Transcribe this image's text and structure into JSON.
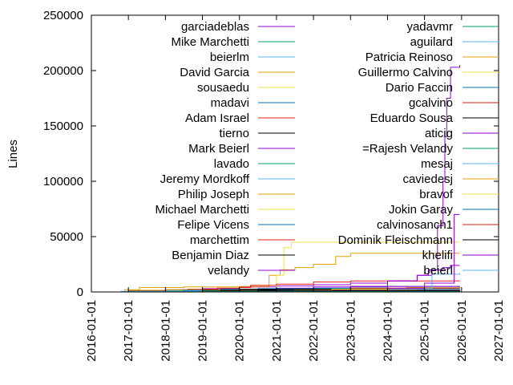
{
  "chart_data": {
    "type": "line",
    "title": "",
    "xlabel": "",
    "ylabel": "Lines",
    "ylim": [
      0,
      250000
    ],
    "xlim": [
      2016.0,
      2027.0
    ],
    "grid": false,
    "legend_position": "top-right",
    "y_ticks": [
      {
        "value": 0,
        "label": "0"
      },
      {
        "value": 50000,
        "label": "50000"
      },
      {
        "value": 100000,
        "label": "100000"
      },
      {
        "value": 150000,
        "label": "150000"
      },
      {
        "value": 200000,
        "label": "200000"
      },
      {
        "value": 250000,
        "label": "250000"
      }
    ],
    "x_ticks": [
      {
        "value": 2016,
        "label": "2016-01-01"
      },
      {
        "value": 2017,
        "label": "2017-01-01"
      },
      {
        "value": 2018,
        "label": "2018-01-01"
      },
      {
        "value": 2019,
        "label": "2019-01-01"
      },
      {
        "value": 2020,
        "label": "2020-01-01"
      },
      {
        "value": 2021,
        "label": "2021-01-01"
      },
      {
        "value": 2022,
        "label": "2022-01-01"
      },
      {
        "value": 2023,
        "label": "2023-01-01"
      },
      {
        "value": 2024,
        "label": "2024-01-01"
      },
      {
        "value": 2025,
        "label": "2025-01-01"
      },
      {
        "value": 2026,
        "label": "2026-01-01"
      },
      {
        "value": 2027,
        "label": "2027-01-01"
      }
    ],
    "series": [
      {
        "name": "garciadeblas",
        "color": "#9400d3",
        "points": [
          [
            2016.3,
            0
          ],
          [
            2017.0,
            1000
          ],
          [
            2018.0,
            2000
          ],
          [
            2019.0,
            3000
          ],
          [
            2020.0,
            4500
          ],
          [
            2021.0,
            5500
          ],
          [
            2022.0,
            6500
          ],
          [
            2023.0,
            8000
          ],
          [
            2024.0,
            10000
          ],
          [
            2024.8,
            15000
          ],
          [
            2025.1,
            20000
          ],
          [
            2025.5,
            22000
          ],
          [
            2025.7,
            24000
          ],
          [
            2025.95,
            24000
          ]
        ]
      },
      {
        "name": "Mike Marchetti",
        "color": "#009e73",
        "points": [
          [
            2016.5,
            0
          ],
          [
            2018.0,
            300
          ],
          [
            2019.5,
            800
          ],
          [
            2022.0,
            1200
          ],
          [
            2025.95,
            1500
          ]
        ]
      },
      {
        "name": "beierlm",
        "color": "#56b4e9",
        "points": [
          [
            2017.5,
            0
          ],
          [
            2019.0,
            1000
          ],
          [
            2021.0,
            1800
          ],
          [
            2023.0,
            2500
          ],
          [
            2025.0,
            3000
          ],
          [
            2025.95,
            3200
          ]
        ]
      },
      {
        "name": "David Garcia",
        "color": "#e69f00",
        "points": [
          [
            2016.2,
            0
          ],
          [
            2016.9,
            2000
          ],
          [
            2017.3,
            4000
          ],
          [
            2018.5,
            4500
          ],
          [
            2020.0,
            5000
          ],
          [
            2020.8,
            15000
          ],
          [
            2021.1,
            20000
          ],
          [
            2021.5,
            22000
          ],
          [
            2022.0,
            25000
          ],
          [
            2022.6,
            32000
          ],
          [
            2023.0,
            35000
          ],
          [
            2025.0,
            35000
          ],
          [
            2025.95,
            35000
          ]
        ]
      },
      {
        "name": "sousaedu",
        "color": "#f0e442",
        "points": [
          [
            2020.5,
            0
          ],
          [
            2021.0,
            15000
          ],
          [
            2021.2,
            40000
          ],
          [
            2021.4,
            45000
          ],
          [
            2022.0,
            45000
          ],
          [
            2023.0,
            45000
          ],
          [
            2025.0,
            45000
          ],
          [
            2025.95,
            45000
          ]
        ]
      },
      {
        "name": "madavi",
        "color": "#0072b2",
        "points": [
          [
            2019.0,
            0
          ],
          [
            2020.0,
            1500
          ],
          [
            2021.0,
            2500
          ],
          [
            2022.0,
            3500
          ],
          [
            2023.0,
            4500
          ],
          [
            2024.0,
            5000
          ],
          [
            2025.95,
            5500
          ]
        ]
      },
      {
        "name": "Adam Israel",
        "color": "#e51e10",
        "points": [
          [
            2018.0,
            0
          ],
          [
            2018.6,
            2500
          ],
          [
            2019.4,
            3500
          ],
          [
            2020.0,
            4000
          ],
          [
            2020.3,
            6000
          ],
          [
            2021.0,
            7000
          ],
          [
            2022.0,
            9000
          ],
          [
            2023.0,
            10000
          ],
          [
            2025.95,
            10000
          ]
        ]
      },
      {
        "name": "tierno",
        "color": "#000000",
        "points": [
          [
            2016.1,
            0
          ],
          [
            2017.0,
            800
          ],
          [
            2019.0,
            1500
          ],
          [
            2021.0,
            2000
          ],
          [
            2023.0,
            2500
          ],
          [
            2025.95,
            3000
          ]
        ]
      },
      {
        "name": "Mark Beierl",
        "color": "#9400d3",
        "points": [
          [
            2019.8,
            0
          ],
          [
            2020.0,
            2000
          ],
          [
            2021.0,
            3500
          ],
          [
            2022.0,
            4500
          ],
          [
            2023.0,
            5000
          ],
          [
            2025.95,
            5500
          ]
        ]
      },
      {
        "name": "lavado",
        "color": "#009e73",
        "points": [
          [
            2017.0,
            0
          ],
          [
            2018.0,
            1500
          ],
          [
            2020.0,
            2500
          ],
          [
            2022.0,
            3000
          ],
          [
            2025.95,
            3500
          ]
        ]
      },
      {
        "name": "Jeremy Mordkoff",
        "color": "#56b4e9",
        "points": [
          [
            2016.3,
            0
          ],
          [
            2016.8,
            500
          ],
          [
            2018.0,
            800
          ],
          [
            2025.95,
            800
          ]
        ]
      },
      {
        "name": "Philip Joseph",
        "color": "#e69f00",
        "points": [
          [
            2016.4,
            0
          ],
          [
            2017.0,
            1500
          ],
          [
            2018.0,
            2000
          ],
          [
            2025.95,
            2000
          ]
        ]
      },
      {
        "name": "Michael Marchetti",
        "color": "#f0e442",
        "points": [
          [
            2018.0,
            0
          ],
          [
            2019.0,
            600
          ],
          [
            2020.0,
            1000
          ],
          [
            2025.95,
            1200
          ]
        ]
      },
      {
        "name": "Felipe Vicens",
        "color": "#0072b2",
        "points": [
          [
            2017.5,
            0
          ],
          [
            2018.5,
            1500
          ],
          [
            2019.5,
            2500
          ],
          [
            2020.5,
            3000
          ],
          [
            2025.95,
            3200
          ]
        ]
      },
      {
        "name": "marchettim",
        "color": "#e51e10",
        "points": [
          [
            2018.5,
            0
          ],
          [
            2019.5,
            700
          ],
          [
            2025.95,
            1000
          ]
        ]
      },
      {
        "name": "Benjamin Diaz",
        "color": "#000000",
        "points": [
          [
            2018.5,
            0
          ],
          [
            2019.5,
            1200
          ],
          [
            2020.5,
            1800
          ],
          [
            2025.95,
            2000
          ]
        ]
      },
      {
        "name": "velandy",
        "color": "#9400d3",
        "points": [
          [
            2019.5,
            0
          ],
          [
            2020.5,
            900
          ],
          [
            2025.95,
            1000
          ]
        ]
      },
      {
        "name": "yadavmr",
        "color": "#009e73",
        "points": [
          [
            2019.0,
            0
          ],
          [
            2020.0,
            500
          ],
          [
            2025.95,
            600
          ]
        ]
      },
      {
        "name": "aguilard",
        "color": "#56b4e9",
        "points": [
          [
            2020.0,
            0
          ],
          [
            2021.0,
            1500
          ],
          [
            2022.0,
            2000
          ],
          [
            2025.95,
            2200
          ]
        ]
      },
      {
        "name": "Patricia Reinoso",
        "color": "#e69f00",
        "points": [
          [
            2022.5,
            0
          ],
          [
            2023.5,
            2500
          ],
          [
            2024.5,
            4000
          ],
          [
            2025.95,
            5000
          ]
        ]
      },
      {
        "name": "Guillermo Calvino",
        "color": "#f0e442",
        "points": [
          [
            2023.0,
            0
          ],
          [
            2024.0,
            2000
          ],
          [
            2025.0,
            4000
          ],
          [
            2025.95,
            6000
          ]
        ]
      },
      {
        "name": "Dario Faccin",
        "color": "#0072b2",
        "points": [
          [
            2023.5,
            0
          ],
          [
            2024.5,
            3500
          ],
          [
            2025.95,
            5000
          ]
        ]
      },
      {
        "name": "gcalvino",
        "color": "#e51e10",
        "points": [
          [
            2021.0,
            0
          ],
          [
            2022.0,
            2000
          ],
          [
            2023.0,
            3500
          ],
          [
            2025.95,
            4500
          ]
        ]
      },
      {
        "name": "Eduardo Sousa",
        "color": "#000000",
        "points": [
          [
            2018.0,
            0
          ],
          [
            2019.0,
            1500
          ],
          [
            2020.0,
            2500
          ],
          [
            2025.95,
            2800
          ]
        ]
      },
      {
        "name": "aticig",
        "color": "#9400d3",
        "points": [
          [
            2021.5,
            0
          ],
          [
            2023.0,
            5000
          ],
          [
            2024.0,
            10000
          ],
          [
            2024.8,
            15000
          ],
          [
            2025.2,
            20000
          ],
          [
            2025.35,
            60000
          ],
          [
            2025.5,
            100000
          ],
          [
            2025.55,
            140000
          ],
          [
            2025.6,
            175000
          ],
          [
            2025.7,
            203000
          ],
          [
            2025.95,
            205000
          ]
        ]
      },
      {
        "name": "=Rajesh Velandy",
        "color": "#009e73",
        "points": [
          [
            2018.0,
            0
          ],
          [
            2019.0,
            400
          ],
          [
            2025.95,
            500
          ]
        ]
      },
      {
        "name": "mesaj",
        "color": "#56b4e9",
        "points": [
          [
            2023.5,
            0
          ],
          [
            2024.5,
            3000
          ],
          [
            2025.2,
            16000
          ],
          [
            2025.95,
            17000
          ]
        ]
      },
      {
        "name": "caviedesj",
        "color": "#e69f00",
        "points": [
          [
            2024.0,
            0
          ],
          [
            2025.0,
            1500
          ],
          [
            2025.95,
            2500
          ]
        ]
      },
      {
        "name": "bravof",
        "color": "#f0e442",
        "points": [
          [
            2020.5,
            0
          ],
          [
            2021.5,
            1500
          ],
          [
            2022.5,
            2500
          ],
          [
            2025.95,
            3000
          ]
        ]
      },
      {
        "name": "Jokin Garay",
        "color": "#0072b2",
        "points": [
          [
            2024.0,
            0
          ],
          [
            2024.8,
            2000
          ],
          [
            2025.95,
            3000
          ]
        ]
      },
      {
        "name": "calvinosanch1",
        "color": "#e51e10",
        "points": [
          [
            2022.0,
            0
          ],
          [
            2023.0,
            1500
          ],
          [
            2025.95,
            2500
          ]
        ]
      },
      {
        "name": "Dominik Fleischmann",
        "color": "#000000",
        "points": [
          [
            2019.5,
            0
          ],
          [
            2020.5,
            1200
          ],
          [
            2025.95,
            1500
          ]
        ]
      },
      {
        "name": "khelifi",
        "color": "#9400d3",
        "points": [
          [
            2022.5,
            0
          ],
          [
            2024.0,
            3000
          ],
          [
            2025.0,
            8000
          ],
          [
            2025.8,
            70000
          ],
          [
            2025.95,
            70000
          ]
        ]
      },
      {
        "name": "beierl",
        "color": "#56b4e9",
        "points": [
          [
            2023.0,
            0
          ],
          [
            2024.0,
            2500
          ],
          [
            2025.95,
            4000
          ]
        ]
      }
    ]
  }
}
